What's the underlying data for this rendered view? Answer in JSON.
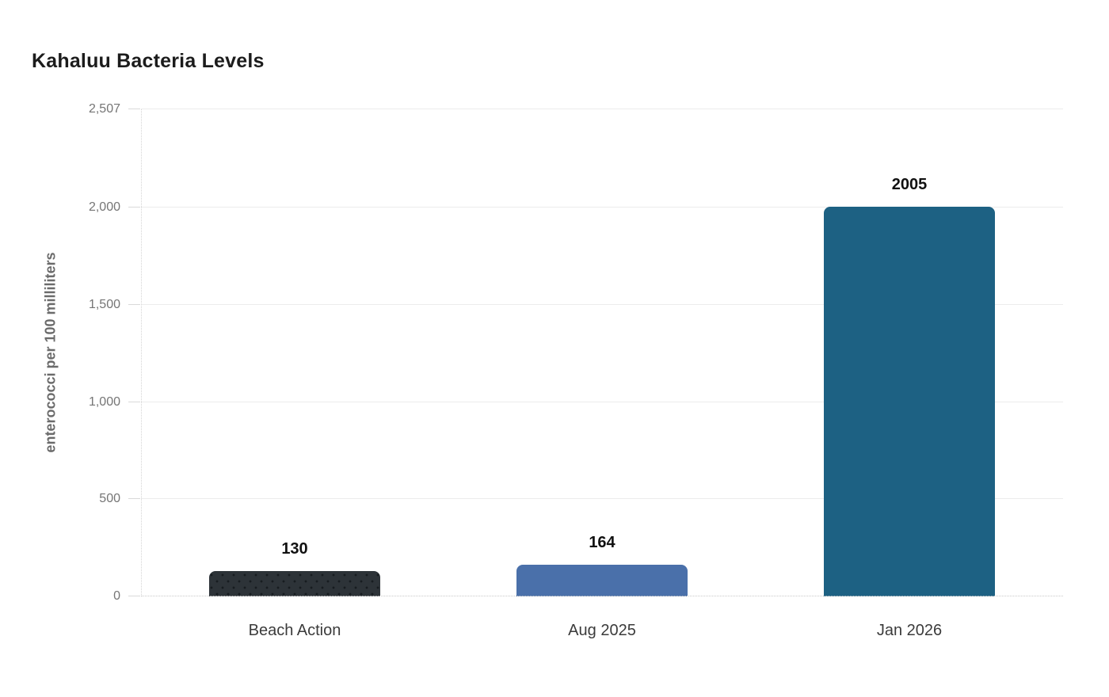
{
  "page": {
    "background_color": "#ffffff"
  },
  "chart_data": {
    "type": "bar",
    "title": "Kahaluu Bacteria Levels",
    "xlabel": "",
    "ylabel": "enterococci per 100 milliliters",
    "categories": [
      "Beach Action",
      "Aug 2025",
      "Jan 2026"
    ],
    "values": [
      130,
      164,
      2005
    ],
    "value_labels": [
      "130",
      "164",
      "2005"
    ],
    "bar_colors": [
      "#2d3338",
      "#4a70aa",
      "#1d6183"
    ],
    "bar_patterns": [
      "dots",
      "solid",
      "solid"
    ],
    "ylim": [
      0,
      2507
    ],
    "yticks": [
      {
        "value": 0,
        "label": "0"
      },
      {
        "value": 500,
        "label": "500"
      },
      {
        "value": 1000,
        "label": "1,000"
      },
      {
        "value": 1500,
        "label": "1,500"
      },
      {
        "value": 2000,
        "label": "2,000"
      },
      {
        "value": 2507,
        "label": "2,507"
      }
    ],
    "grid": true,
    "legend_position": "none",
    "colors": {
      "title_text": "#1c1c1c",
      "axis_title_text": "#6b6b6b",
      "tick_label_text": "#757575",
      "category_label_text": "#3b3b3b",
      "value_label_text": "#111111",
      "gridline": "#ececec"
    }
  }
}
